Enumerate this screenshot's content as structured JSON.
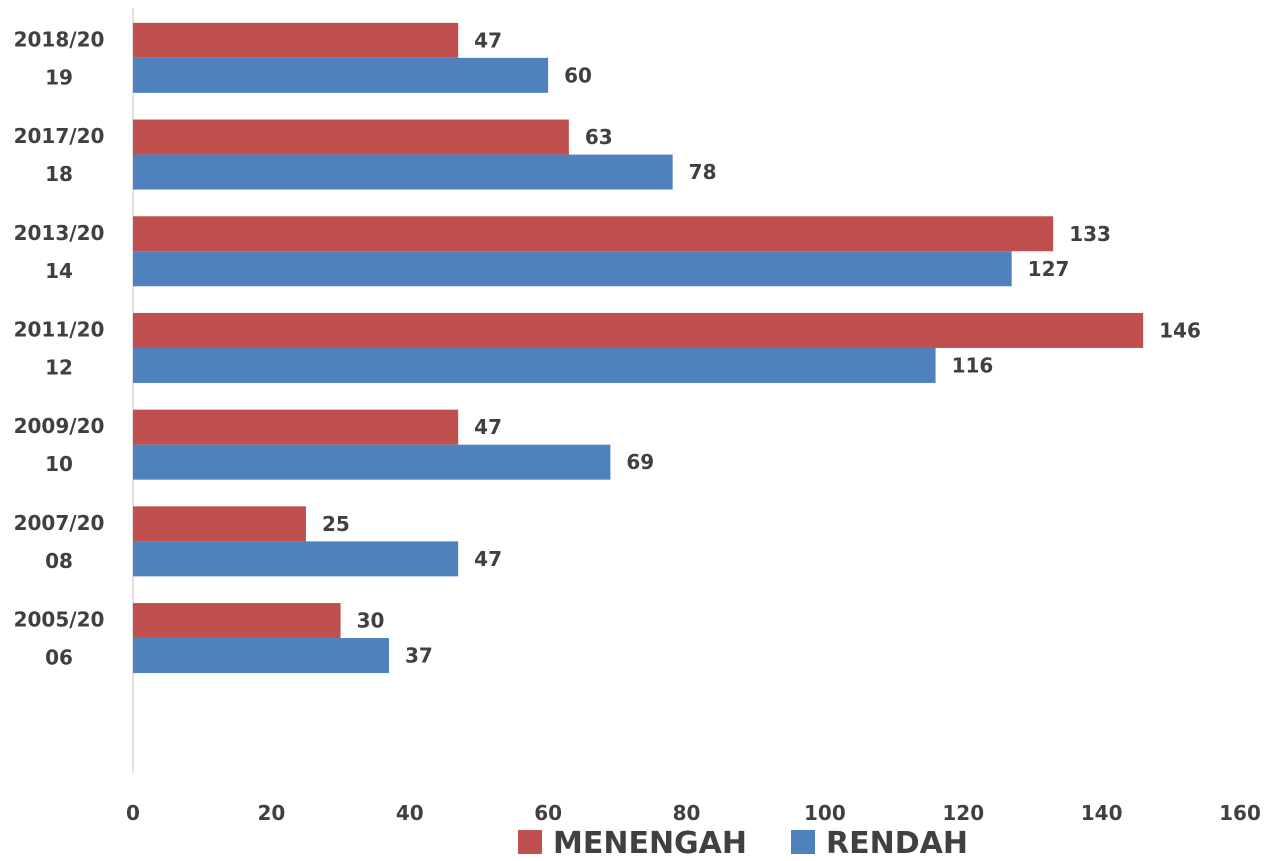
{
  "chart_data": {
    "type": "bar",
    "orientation": "horizontal",
    "categories": [
      "2018/2019",
      "2017/2018",
      "2013/2014",
      "2011/2012",
      "2009/2010",
      "2007/2008",
      "2005/2006"
    ],
    "category_label_lines": [
      [
        "2018/20",
        "19"
      ],
      [
        "2017/20",
        "18"
      ],
      [
        "2013/20",
        "14"
      ],
      [
        "2011/20",
        "12"
      ],
      [
        "2009/20",
        "10"
      ],
      [
        "2007/20",
        "08"
      ],
      [
        "2005/20",
        "06"
      ]
    ],
    "series": [
      {
        "name": "MENENGAH",
        "color": "#C0504D",
        "values": [
          47,
          63,
          133,
          146,
          47,
          25,
          30
        ]
      },
      {
        "name": "RENDAH",
        "color": "#4F81BD",
        "values": [
          60,
          78,
          127,
          116,
          69,
          47,
          37
        ]
      }
    ],
    "xlim": [
      0,
      160
    ],
    "x_ticks": [
      0,
      20,
      40,
      60,
      80,
      100,
      120,
      140,
      160
    ],
    "title": "",
    "xlabel": "",
    "ylabel": "",
    "grid": false,
    "data_labels": true,
    "legend_position": "bottom",
    "axis_color": "#D9D9D9",
    "text_color": "#404040"
  }
}
